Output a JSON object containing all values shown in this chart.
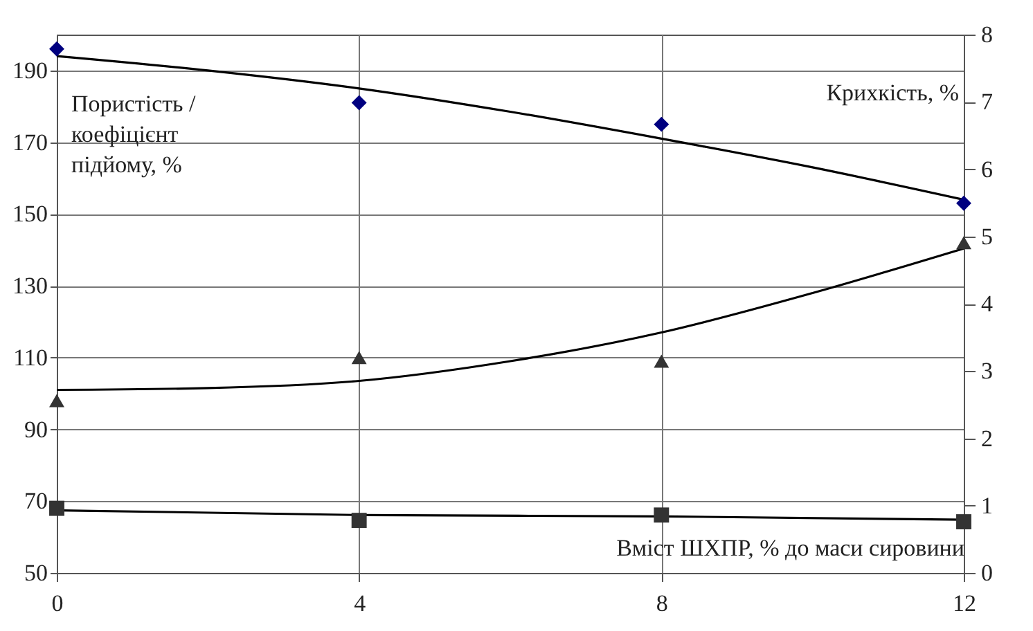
{
  "chart_data": {
    "type": "scatter",
    "xlabel": "Вміст ШХПР, % до маси сировини",
    "ylabel": "Пористість /\nкоефіцієнт\nпідйому, %",
    "y2label": "Крихкість, %",
    "x": [
      0,
      4,
      8,
      12
    ],
    "xlim": [
      0,
      12
    ],
    "xticks": [
      0,
      4,
      8,
      12
    ],
    "ylim": [
      50,
      200
    ],
    "yticks": [
      50,
      70,
      90,
      110,
      130,
      150,
      170,
      190
    ],
    "y2lim": [
      0,
      8
    ],
    "y2ticks": [
      0,
      1,
      2,
      3,
      4,
      5,
      6,
      7,
      8
    ],
    "grid": true,
    "series": [
      {
        "type": "line",
        "color": "#000000",
        "x": [
          0,
          2,
          4,
          6,
          8,
          10,
          12
        ],
        "values": [
          194,
          190,
          185,
          178.5,
          171,
          163,
          154
        ],
        "marker": "none",
        "line_style": "solid"
      },
      {
        "type": "line",
        "color": "#000000",
        "x": [
          0,
          2,
          4,
          6,
          8,
          10,
          12
        ],
        "values": [
          101,
          101.5,
          103.5,
          109,
          117,
          128,
          140.4
        ],
        "marker": "none",
        "line_style": "solid"
      },
      {
        "type": "line",
        "color": "#000000",
        "axis": "y2",
        "x": [
          0,
          4,
          8,
          12
        ],
        "values": [
          0.93,
          0.86,
          0.84,
          0.79
        ],
        "marker": "none",
        "line_style": "solid"
      },
      {
        "color": "#000080",
        "values": [
          196,
          181,
          175,
          153
        ],
        "marker": "diamond"
      },
      {
        "color": "#333333",
        "values": [
          98,
          110,
          109,
          142
        ],
        "marker": "triangle"
      },
      {
        "color": "#333333",
        "axis": "y2",
        "values": [
          0.96,
          0.78,
          0.86,
          0.76
        ],
        "marker": "square"
      }
    ]
  }
}
